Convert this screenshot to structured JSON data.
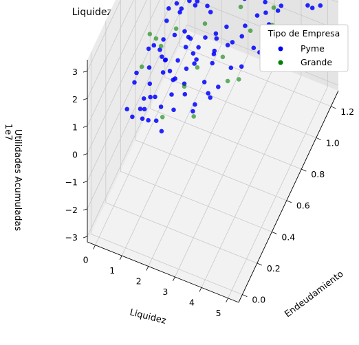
{
  "chart_data": {
    "type": "scatter3d",
    "title": "Liquidez, Endeudamiento y Utilidades Acumuladas",
    "xlabel": "Liquidez",
    "ylabel": "Endeudamiento",
    "zlabel": "Utilidades Acumuladas",
    "z_offset_text": "1e7",
    "x_ticks": [
      "0",
      "1",
      "2",
      "3",
      "4",
      "5"
    ],
    "y_ticks": [
      "0.0",
      "0.2",
      "0.4",
      "0.6",
      "0.8",
      "1.0",
      "1.2"
    ],
    "z_ticks": [
      "−3",
      "−2",
      "−1",
      "0",
      "1",
      "2",
      "3"
    ],
    "xlim": [
      -0.3,
      5.4
    ],
    "ylim": [
      -0.05,
      1.3
    ],
    "zlim": [
      -3.2,
      3.4
    ],
    "legend": {
      "title": "Tipo de Empresa",
      "placement": "top-right",
      "entries": [
        {
          "label": "Pyme",
          "color": "#0000ff"
        },
        {
          "label": "Grande",
          "color": "#008000"
        }
      ]
    },
    "series": [
      {
        "name": "Pyme",
        "color": "#0000ff",
        "points": [
          [
            0.7,
            0.6,
            0.2
          ],
          [
            0.9,
            0.7,
            0.5
          ],
          [
            1.1,
            0.5,
            0.8
          ],
          [
            1.3,
            0.6,
            0.3
          ],
          [
            1.5,
            0.7,
            0.6
          ],
          [
            1.0,
            0.8,
            0.1
          ],
          [
            0.8,
            0.4,
            0.4
          ],
          [
            1.2,
            0.9,
            0.7
          ],
          [
            1.4,
            0.5,
            0.2
          ],
          [
            1.6,
            0.6,
            0.9
          ],
          [
            1.8,
            0.7,
            0.4
          ],
          [
            2.0,
            0.6,
            0.6
          ],
          [
            2.2,
            0.8,
            0.3
          ],
          [
            1.9,
            0.5,
            0.8
          ],
          [
            1.7,
            0.9,
            0.5
          ],
          [
            0.6,
            0.7,
            0.9
          ],
          [
            0.5,
            0.5,
            0.3
          ],
          [
            1.1,
            0.3,
            0.6
          ],
          [
            1.3,
            0.4,
            1.0
          ],
          [
            2.4,
            0.7,
            0.5
          ],
          [
            2.6,
            0.6,
            0.7
          ],
          [
            2.8,
            0.8,
            0.4
          ],
          [
            2.1,
            0.4,
            0.9
          ],
          [
            1.5,
            0.3,
            0.4
          ],
          [
            0.9,
            0.9,
            0.6
          ],
          [
            0.4,
            0.6,
            0.5
          ],
          [
            1.0,
            1.0,
            0.3
          ],
          [
            1.2,
            1.1,
            0.5
          ],
          [
            1.6,
            1.0,
            0.8
          ],
          [
            2.0,
            1.0,
            0.6
          ],
          [
            2.3,
            0.9,
            0.2
          ],
          [
            2.5,
            1.1,
            0.4
          ],
          [
            1.8,
            1.1,
            0.7
          ],
          [
            0.8,
            1.1,
            0.4
          ],
          [
            0.6,
            0.9,
            0.2
          ],
          [
            1.4,
            0.8,
            1.2
          ],
          [
            1.1,
            0.7,
            1.4
          ],
          [
            1.7,
            0.6,
            1.3
          ],
          [
            0.9,
            0.5,
            1.1
          ],
          [
            2.2,
            0.5,
            1.1
          ],
          [
            0.3,
            0.4,
            0.6
          ],
          [
            0.5,
            0.3,
            0.9
          ],
          [
            0.7,
            0.2,
            0.3
          ],
          [
            1.0,
            0.2,
            0.7
          ],
          [
            1.3,
            0.2,
            0.4
          ],
          [
            0.2,
            0.6,
            0.3
          ],
          [
            0.4,
            0.8,
            0.7
          ],
          [
            0.6,
            1.0,
            0.8
          ],
          [
            1.5,
            1.2,
            0.6
          ],
          [
            2.0,
            1.2,
            0.3
          ],
          [
            2.7,
            1.0,
            0.8
          ],
          [
            3.0,
            0.9,
            0.5
          ],
          [
            3.2,
            1.1,
            0.3
          ],
          [
            2.9,
            0.7,
            0.9
          ],
          [
            3.5,
            1.0,
            0.6
          ],
          [
            3.8,
            1.1,
            0.4
          ],
          [
            4.0,
            1.2,
            0.7
          ],
          [
            4.2,
            1.0,
            0.2
          ],
          [
            3.6,
            0.8,
            0.5
          ],
          [
            3.3,
            0.6,
            0.8
          ],
          [
            4.5,
            1.2,
            0.5
          ],
          [
            4.8,
            1.1,
            0.8
          ],
          [
            4.6,
            0.9,
            0.4
          ],
          [
            3.9,
            0.9,
            0.9
          ],
          [
            3.1,
            0.5,
            0.6
          ],
          [
            2.5,
            0.4,
            0.3
          ],
          [
            2.7,
            0.3,
            0.7
          ],
          [
            1.9,
            0.3,
            1.0
          ],
          [
            1.6,
            0.2,
            0.5
          ],
          [
            0.8,
            0.3,
            -0.3
          ],
          [
            1.2,
            0.6,
            -0.4
          ],
          [
            1.5,
            0.9,
            -0.5
          ],
          [
            2.1,
            0.8,
            -0.3
          ],
          [
            2.6,
            1.0,
            -0.6
          ],
          [
            0.6,
            0.4,
            -0.6
          ],
          [
            1.0,
            0.6,
            -0.2
          ],
          [
            1.7,
            0.4,
            -0.2
          ],
          [
            1.9,
            0.9,
            -0.2
          ],
          [
            2.3,
            0.6,
            -0.1
          ],
          [
            2.9,
            1.1,
            -0.3
          ],
          [
            3.4,
            1.2,
            -0.5
          ],
          [
            4.3,
            1.2,
            -0.8
          ],
          [
            0.3,
            0.5,
            -0.9
          ],
          [
            0.2,
            0.8,
            -0.5
          ],
          [
            4.1,
            0.7,
            1.1
          ],
          [
            3.7,
            0.6,
            1.0
          ],
          [
            2.4,
            0.3,
            1.2
          ],
          [
            1.1,
            1.2,
            1.2
          ],
          [
            1.4,
            0.4,
            1.5
          ],
          [
            0.7,
            0.8,
            1.0
          ],
          [
            2.8,
            0.5,
            0.1
          ],
          [
            3.0,
            0.4,
            0.9
          ],
          [
            1.8,
            0.2,
            0.2
          ],
          [
            0.5,
            0.2,
            0.5
          ],
          [
            1.0,
            0.4,
            0.0
          ],
          [
            1.3,
            1.0,
            0.0
          ],
          [
            2.2,
            1.2,
            0.9
          ],
          [
            4.7,
            1.2,
            0.1
          ],
          [
            5.0,
            1.2,
            0.3
          ],
          [
            1.6,
            0.7,
            0.1
          ]
        ]
      },
      {
        "name": "Grande",
        "color": "#008000",
        "points": [
          [
            0.3,
            0.6,
            2.4
          ],
          [
            0.8,
            0.4,
            2.2
          ],
          [
            1.5,
            0.3,
            2.6
          ],
          [
            2.6,
            0.5,
            2.7
          ],
          [
            4.3,
            0.8,
            1.6
          ],
          [
            4.6,
            0.9,
            0.7
          ],
          [
            3.8,
            1.0,
            0.9
          ],
          [
            0.2,
            0.7,
            0.1
          ],
          [
            0.4,
            0.9,
            -0.6
          ],
          [
            1.2,
            0.9,
            -1.7
          ],
          [
            1.6,
            1.1,
            -2.3
          ],
          [
            2.0,
            1.2,
            -0.9
          ],
          [
            2.9,
            0.7,
            -0.4
          ],
          [
            3.2,
            0.9,
            0.4
          ],
          [
            0.5,
            0.4,
            0.9
          ],
          [
            1.9,
            0.6,
            -1.5
          ],
          [
            0.9,
            1.0,
            0.6
          ],
          [
            2.1,
            0.4,
            0.8
          ],
          [
            1.0,
            0.5,
            -1.3
          ],
          [
            3.6,
            0.6,
            0.5
          ]
        ]
      }
    ]
  }
}
